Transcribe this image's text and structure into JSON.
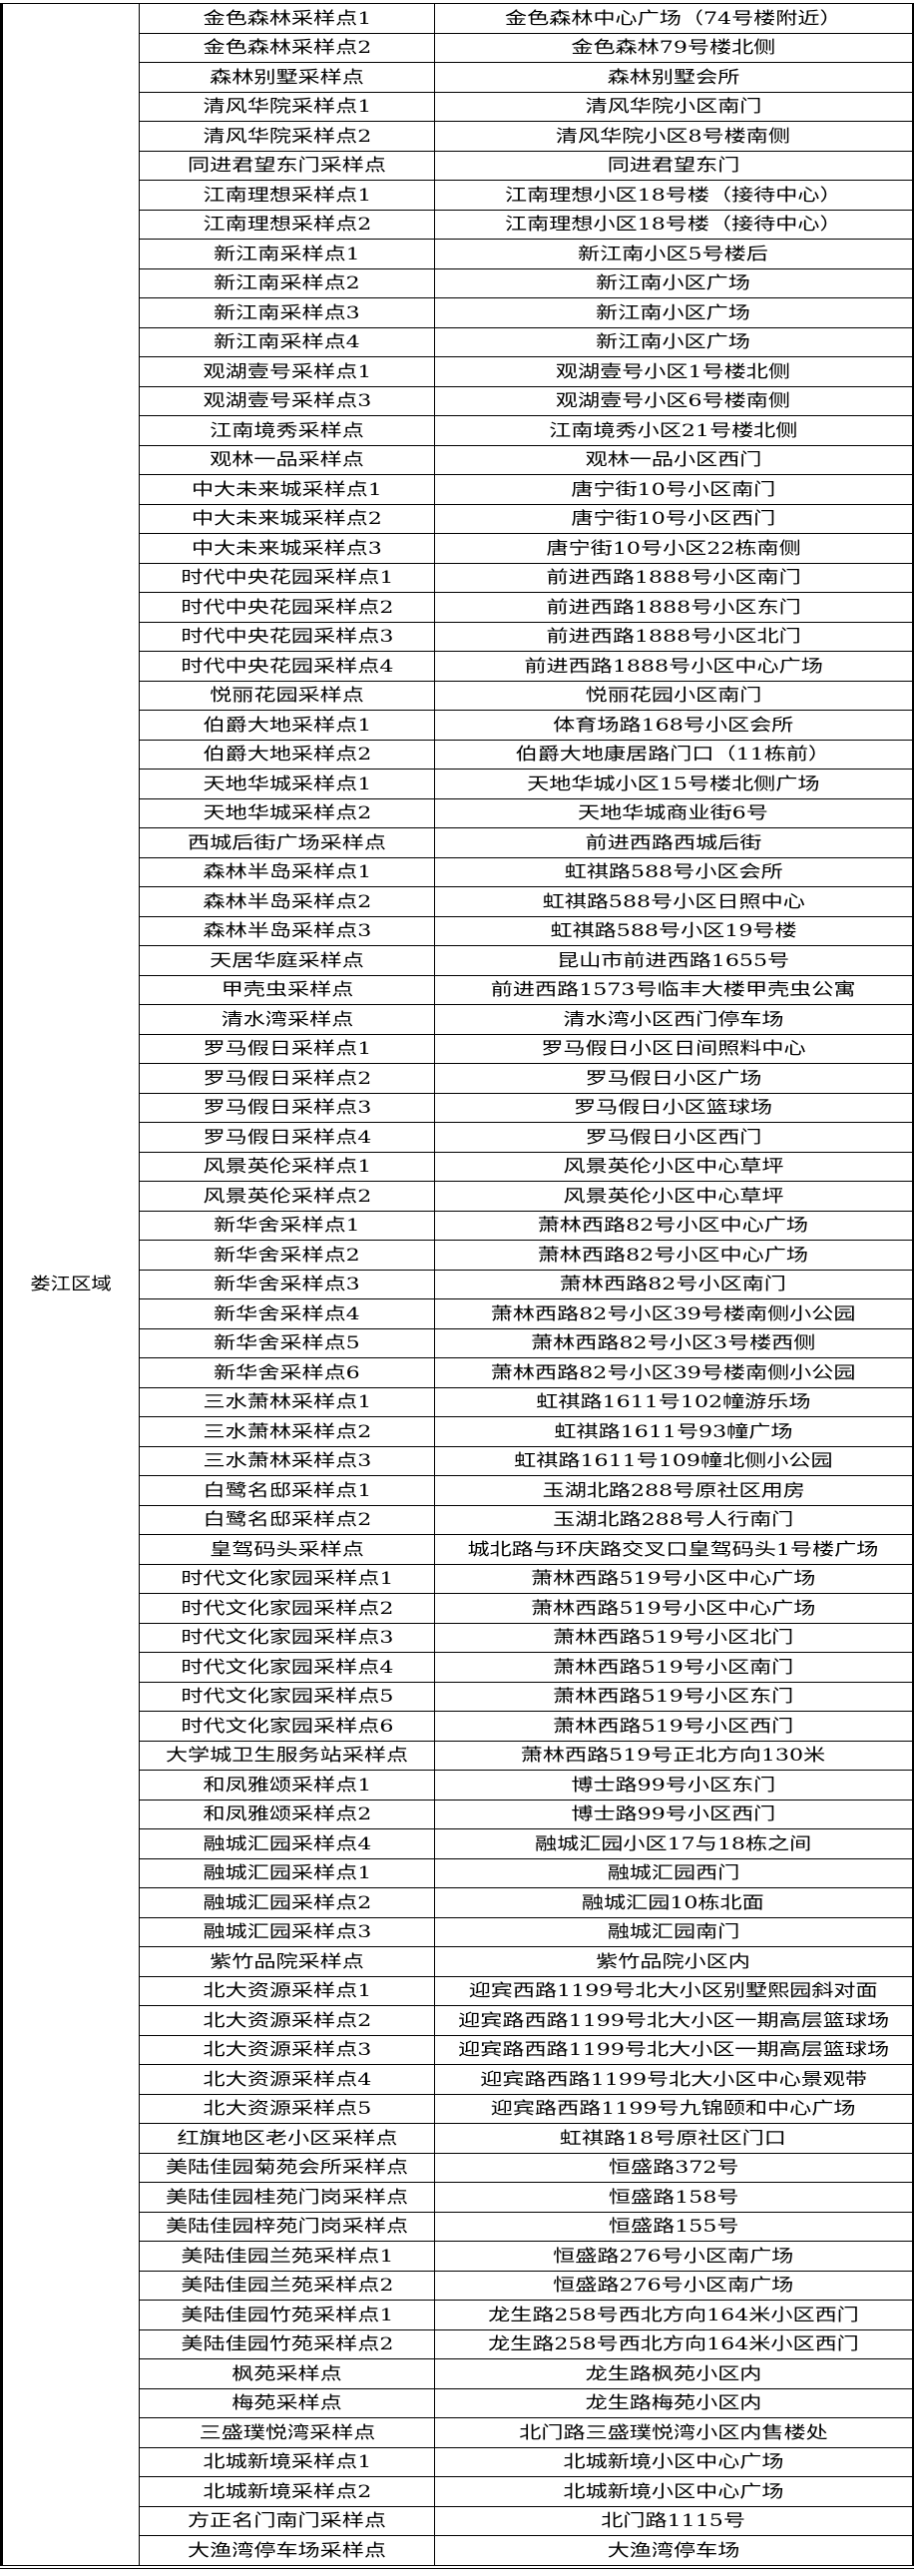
{
  "district": "娄江区域",
  "rows": [
    [
      "金色森林采样点1",
      "金色森林中心广场（74号楼附近）"
    ],
    [
      "金色森林采样点2",
      "金色森林79号楼北侧"
    ],
    [
      "森林别墅采样点",
      "森林别墅会所"
    ],
    [
      "清风华院采样点1",
      "清风华院小区南门"
    ],
    [
      "清风华院采样点2",
      "清风华院小区8号楼南侧"
    ],
    [
      "同进君望东门采样点",
      "同进君望东门"
    ],
    [
      "江南理想采样点1",
      "江南理想小区18号楼（接待中心）"
    ],
    [
      "江南理想采样点2",
      "江南理想小区18号楼（接待中心）"
    ],
    [
      "新江南采样点1",
      "新江南小区5号楼后"
    ],
    [
      "新江南采样点2",
      "新江南小区广场"
    ],
    [
      "新江南采样点3",
      "新江南小区广场"
    ],
    [
      "新江南采样点4",
      "新江南小区广场"
    ],
    [
      "观湖壹号采样点1",
      "观湖壹号小区1号楼北侧"
    ],
    [
      "观湖壹号采样点3",
      "观湖壹号小区6号楼南侧"
    ],
    [
      "江南境秀采样点",
      "江南境秀小区21号楼北侧"
    ],
    [
      "观林一品采样点",
      "观林一品小区西门"
    ],
    [
      "中大未来城采样点1",
      "唐宁街10号小区南门"
    ],
    [
      "中大未来城采样点2",
      "唐宁街10号小区西门"
    ],
    [
      "中大未来城采样点3",
      "唐宁街10号小区22栋南侧"
    ],
    [
      "时代中央花园采样点1",
      "前进西路1888号小区南门"
    ],
    [
      "时代中央花园采样点2",
      "前进西路1888号小区东门"
    ],
    [
      "时代中央花园采样点3",
      "前进西路1888号小区北门"
    ],
    [
      "时代中央花园采样点4",
      "前进西路1888号小区中心广场"
    ],
    [
      "悦丽花园采样点",
      "悦丽花园小区南门"
    ],
    [
      "伯爵大地采样点1",
      "体育场路168号小区会所"
    ],
    [
      "伯爵大地采样点2",
      "伯爵大地康居路门口（11栋前）"
    ],
    [
      "天地华城采样点1",
      "天地华城小区15号楼北侧广场"
    ],
    [
      "天地华城采样点2",
      "天地华城商业街6号"
    ],
    [
      "西城后街广场采样点",
      "前进西路西城后街"
    ],
    [
      "森林半岛采样点1",
      "虹祺路588号小区会所"
    ],
    [
      "森林半岛采样点2",
      "虹祺路588号小区日照中心"
    ],
    [
      "森林半岛采样点3",
      "虹祺路588号小区19号楼"
    ],
    [
      "天居华庭采样点",
      "昆山市前进西路1655号"
    ],
    [
      "甲壳虫采样点",
      "前进西路1573号临丰大楼甲壳虫公寓"
    ],
    [
      "清水湾采样点",
      "清水湾小区西门停车场"
    ],
    [
      "罗马假日采样点1",
      "罗马假日小区日间照料中心"
    ],
    [
      "罗马假日采样点2",
      "罗马假日小区广场"
    ],
    [
      "罗马假日采样点3",
      "罗马假日小区篮球场"
    ],
    [
      "罗马假日采样点4",
      "罗马假日小区西门"
    ],
    [
      "风景英伦采样点1",
      "风景英伦小区中心草坪"
    ],
    [
      "风景英伦采样点2",
      "风景英伦小区中心草坪"
    ],
    [
      "新华舍采样点1",
      "萧林西路82号小区中心广场"
    ],
    [
      "新华舍采样点2",
      "萧林西路82号小区中心广场"
    ],
    [
      "新华舍采样点3",
      "萧林西路82号小区南门"
    ],
    [
      "新华舍采样点4",
      "萧林西路82号小区39号楼南侧小公园"
    ],
    [
      "新华舍采样点5",
      "萧林西路82号小区3号楼西侧"
    ],
    [
      "新华舍采样点6",
      "萧林西路82号小区39号楼南侧小公园"
    ],
    [
      "三水萧林采样点1",
      "虹祺路1611号102幢游乐场"
    ],
    [
      "三水萧林采样点2",
      "虹祺路1611号93幢广场"
    ],
    [
      "三水萧林采样点3",
      "虹祺路1611号109幢北侧小公园"
    ],
    [
      "白鹭名邸采样点1",
      "玉湖北路288号原社区用房"
    ],
    [
      "白鹭名邸采样点2",
      "玉湖北路288号人行南门"
    ],
    [
      "皇驾码头采样点",
      "城北路与环庆路交叉口皇驾码头1号楼广场"
    ],
    [
      "时代文化家园采样点1",
      "萧林西路519号小区中心广场"
    ],
    [
      "时代文化家园采样点2",
      "萧林西路519号小区中心广场"
    ],
    [
      "时代文化家园采样点3",
      "萧林西路519号小区北门"
    ],
    [
      "时代文化家园采样点4",
      "萧林西路519号小区南门"
    ],
    [
      "时代文化家园采样点5",
      "萧林西路519号小区东门"
    ],
    [
      "时代文化家园采样点6",
      "萧林西路519号小区西门"
    ],
    [
      "大学城卫生服务站采样点",
      "萧林西路519号正北方向130米"
    ],
    [
      "和凤雅颂采样点1",
      "博士路99号小区东门"
    ],
    [
      "和凤雅颂采样点2",
      "博士路99号小区西门"
    ],
    [
      "融城汇园采样点4",
      "融城汇园小区17与18栋之间"
    ],
    [
      "融城汇园采样点1",
      "融城汇园西门"
    ],
    [
      "融城汇园采样点2",
      "融城汇园10栋北面"
    ],
    [
      "融城汇园采样点3",
      "融城汇园南门"
    ],
    [
      "紫竹品院采样点",
      "紫竹品院小区内"
    ],
    [
      "北大资源采样点1",
      "迎宾西路1199号北大小区别墅熙园斜对面"
    ],
    [
      "北大资源采样点2",
      "迎宾路西路1199号北大小区一期高层篮球场"
    ],
    [
      "北大资源采样点3",
      "迎宾路西路1199号北大小区一期高层篮球场"
    ],
    [
      "北大资源采样点4",
      "迎宾路西路1199号北大小区中心景观带"
    ],
    [
      "北大资源采样点5",
      "迎宾路西路1199号九锦颐和中心广场"
    ],
    [
      "红旗地区老小区采样点",
      "虹祺路18号原社区门口"
    ],
    [
      "美陆佳园菊苑会所采样点",
      "恒盛路372号"
    ],
    [
      "美陆佳园桂苑门岗采样点",
      "恒盛路158号"
    ],
    [
      "美陆佳园梓苑门岗采样点",
      "恒盛路155号"
    ],
    [
      "美陆佳园兰苑采样点1",
      "恒盛路276号小区南广场"
    ],
    [
      "美陆佳园兰苑采样点2",
      "恒盛路276号小区南广场"
    ],
    [
      "美陆佳园竹苑采样点1",
      "龙生路258号西北方向164米小区西门"
    ],
    [
      "美陆佳园竹苑采样点2",
      "龙生路258号西北方向164米小区西门"
    ],
    [
      "枫苑采样点",
      "龙生路枫苑小区内"
    ],
    [
      "梅苑采样点",
      "龙生路梅苑小区内"
    ],
    [
      "三盛璞悦湾采样点",
      "北门路三盛璞悦湾小区内售楼处"
    ],
    [
      "北城新境采样点1",
      "北城新境小区中心广场"
    ],
    [
      "北城新境采样点2",
      "北城新境小区中心广场"
    ],
    [
      "方正名门南门采样点",
      "北门路1115号"
    ],
    [
      "大渔湾停车场采样点",
      "大渔湾停车场"
    ]
  ]
}
